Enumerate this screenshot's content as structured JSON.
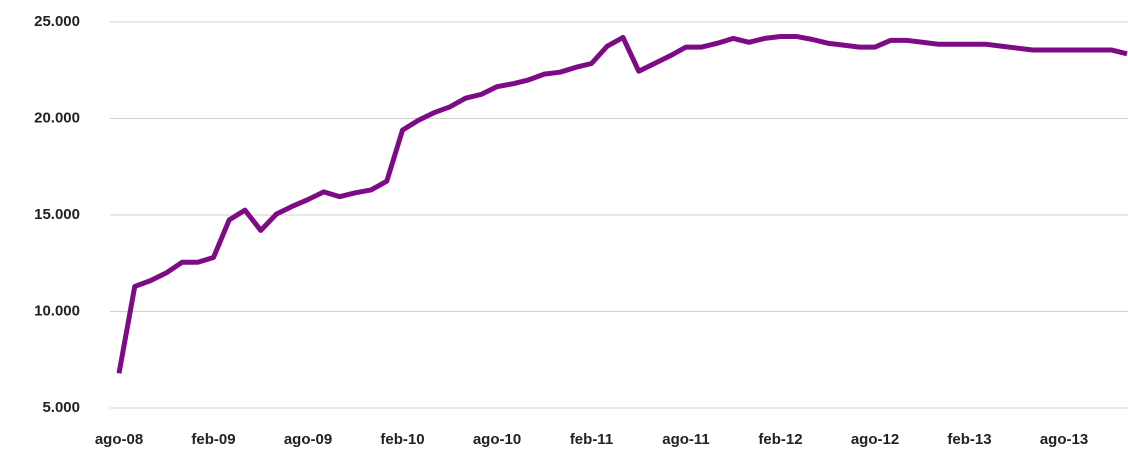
{
  "chart_data": {
    "type": "line",
    "categories": [
      "ago-08",
      null,
      null,
      null,
      null,
      null,
      "feb-09",
      null,
      null,
      null,
      null,
      null,
      "ago-09",
      null,
      null,
      null,
      null,
      null,
      "feb-10",
      null,
      null,
      null,
      null,
      null,
      "ago-10",
      null,
      null,
      null,
      null,
      null,
      "feb-11",
      null,
      null,
      null,
      null,
      null,
      "ago-11",
      null,
      null,
      null,
      null,
      null,
      "feb-12",
      null,
      null,
      null,
      null,
      null,
      "ago-12",
      null,
      null,
      null,
      null,
      null,
      "feb-13",
      null,
      null,
      null,
      null,
      null,
      "ago-13",
      null,
      null,
      null,
      null
    ],
    "series": [
      {
        "color": "#7d0b86",
        "values": [
          6800,
          11300,
          11600,
          12000,
          12550,
          12550,
          12800,
          14750,
          15250,
          14200,
          15050,
          15450,
          15800,
          16200,
          15950,
          16150,
          16300,
          16750,
          19400,
          19900,
          20300,
          20600,
          21050,
          21250,
          21650,
          21800,
          22000,
          22300,
          22400,
          22650,
          22850,
          23750,
          24200,
          22450,
          22850,
          23250,
          23700,
          23700,
          23900,
          24150,
          23950,
          24150,
          24250,
          24250,
          24100,
          23900,
          23800,
          23700,
          23700,
          24050,
          24050,
          23950,
          23850,
          23850,
          23850,
          23850,
          23750,
          23650,
          23550,
          23550,
          23550,
          23550,
          23550,
          23550,
          23350
        ]
      }
    ],
    "ylim": [
      5000,
      25000
    ],
    "yticks": [
      {
        "value": 5000,
        "label": "5.000"
      },
      {
        "value": 10000,
        "label": "10.000"
      },
      {
        "value": 15000,
        "label": "15.000"
      },
      {
        "value": 20000,
        "label": "20.000"
      },
      {
        "value": 25000,
        "label": "25.000"
      }
    ],
    "grid": true
  }
}
